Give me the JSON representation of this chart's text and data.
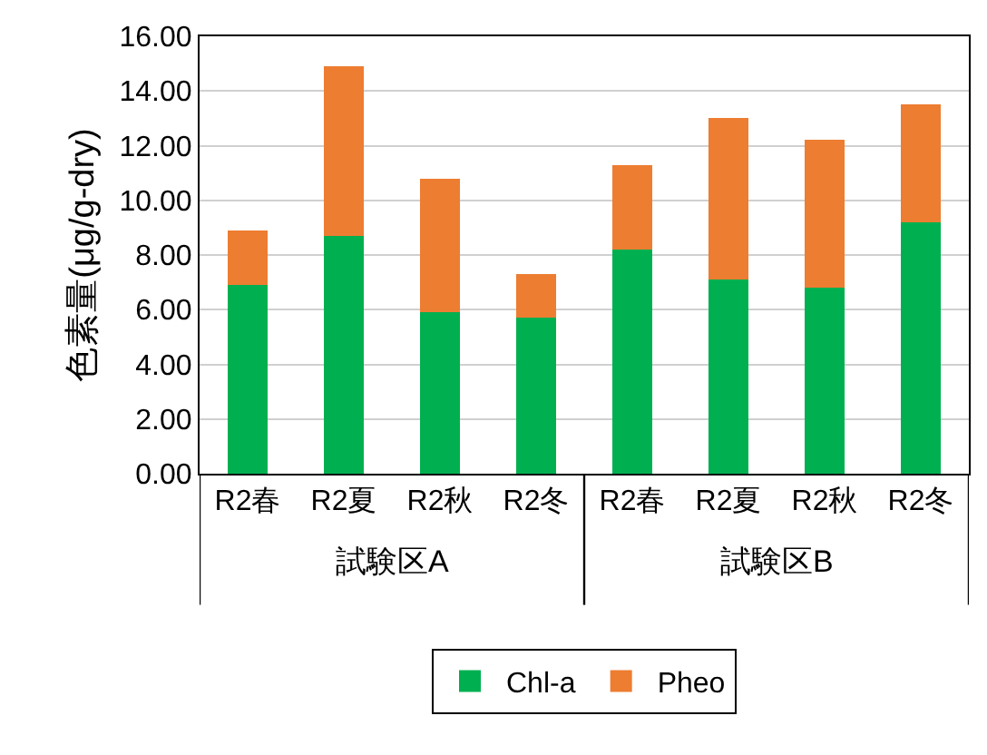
{
  "chart_data": {
    "type": "bar",
    "stacked": true,
    "ylabel": "色素量(μg/g-dry)",
    "categories": [
      "R2春",
      "R2夏",
      "R2秋",
      "R2冬",
      "R2春",
      "R2夏",
      "R2秋",
      "R2冬"
    ],
    "series": [
      {
        "name": "Chl-a",
        "color": "#00b050",
        "values": [
          6.9,
          8.7,
          5.9,
          5.7,
          8.2,
          7.1,
          6.8,
          9.2
        ]
      },
      {
        "name": "Pheo",
        "color": "#ed7d31",
        "values": [
          2.0,
          6.2,
          4.9,
          1.6,
          3.1,
          5.9,
          5.4,
          4.3
        ]
      }
    ],
    "annotations": [
      "試験区A",
      "試験区B"
    ],
    "ylim": [
      0,
      16
    ],
    "yticks": [
      {
        "value": 0,
        "label": "0.00"
      },
      {
        "value": 2,
        "label": "2.00"
      },
      {
        "value": 4,
        "label": "4.00"
      },
      {
        "value": 6,
        "label": "6.00"
      },
      {
        "value": 8,
        "label": "8.00"
      },
      {
        "value": 10,
        "label": "10.00"
      },
      {
        "value": 12,
        "label": "12.00"
      },
      {
        "value": 14,
        "label": "14.00"
      },
      {
        "value": 16,
        "label": "16.00"
      }
    ],
    "grid": "y",
    "legend": "bottom"
  }
}
